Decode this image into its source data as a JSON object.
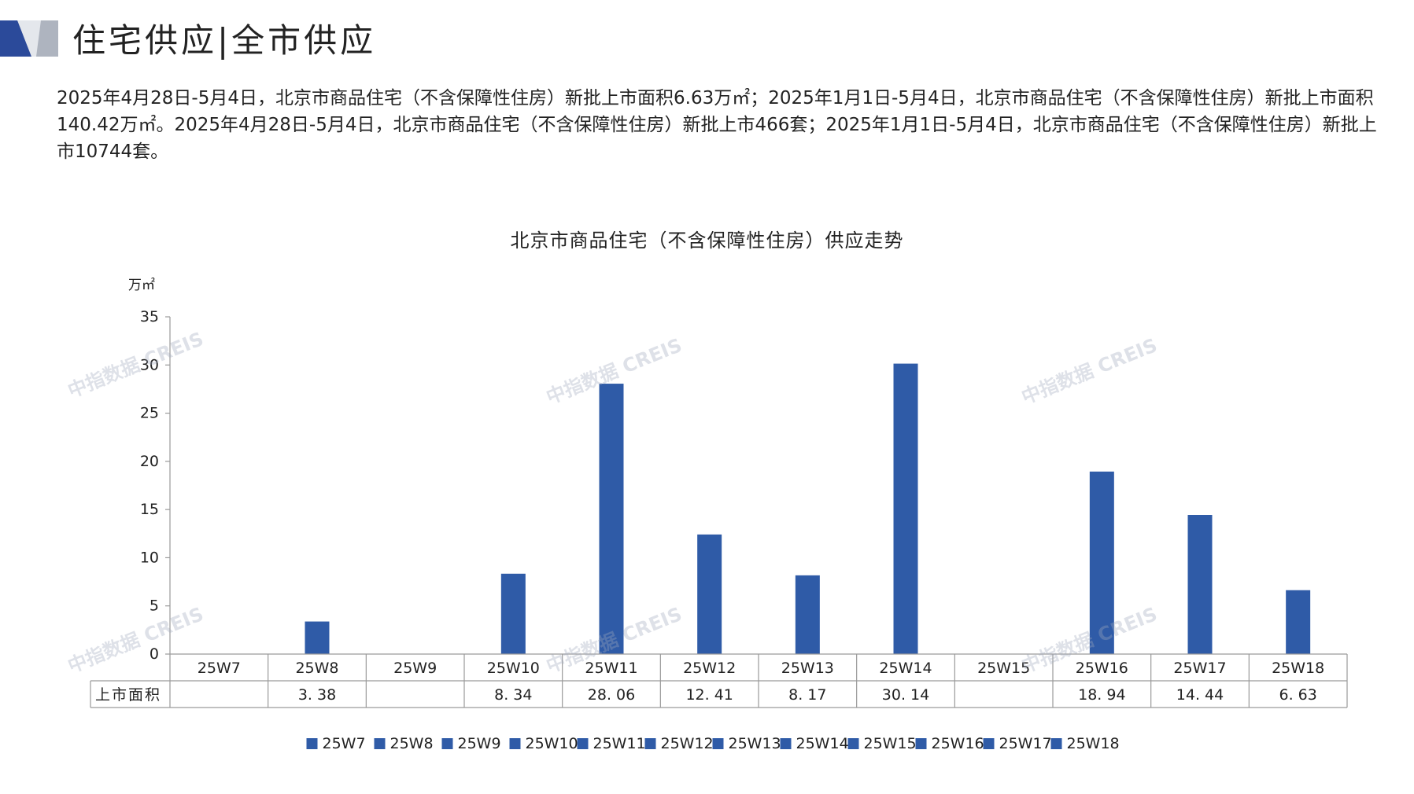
{
  "header": {
    "title": "住宅供应|全市供应"
  },
  "summary": "2025年4月28日-5月4日，北京市商品住宅（不含保障性住房）新批上市面积6.63万㎡；2025年1月1日-5月4日，北京市商品住宅（不含保障性住房）新批上市面积140.42万㎡。2025年4月28日-5月4日，北京市商品住宅（不含保障性住房）新批上市466套；2025年1月1日-5月4日，北京市商品住宅（不含保障性住房）新批上市10744套。",
  "watermark": "中指数据 CREIS",
  "colors": {
    "bar": "#2f5ba7",
    "logo_blue": "#2b4a9a",
    "logo_gray": "#aeb4bf",
    "grid": "#9a9a9a"
  },
  "chart_data": {
    "type": "bar",
    "title": "北京市商品住宅（不含保障性住房）供应走势",
    "ylabel": "万㎡",
    "ylim": [
      0,
      35
    ],
    "yticks": [
      0,
      5,
      10,
      15,
      20,
      25,
      30,
      35
    ],
    "categories": [
      "25W7",
      "25W8",
      "25W9",
      "25W10",
      "25W11",
      "25W12",
      "25W13",
      "25W14",
      "25W15",
      "25W16",
      "25W17",
      "25W18"
    ],
    "series": [
      {
        "name": "上市面积",
        "values": [
          null,
          3.38,
          null,
          8.34,
          28.06,
          12.41,
          8.17,
          30.14,
          null,
          18.94,
          14.44,
          6.63
        ],
        "labels": [
          "",
          "3. 38",
          "",
          "8. 34",
          "28. 06",
          "12. 41",
          "8. 17",
          "30. 14",
          "",
          "18. 94",
          "14. 44",
          "6. 63"
        ]
      }
    ],
    "legend": {
      "position": "bottom",
      "entries": [
        "25W7",
        "25W8",
        "25W9",
        "25W10",
        "25W11",
        "25W12",
        "25W13",
        "25W14",
        "25W15",
        "25W16",
        "25W17",
        "25W18"
      ]
    },
    "grid": false,
    "data_table": true
  }
}
